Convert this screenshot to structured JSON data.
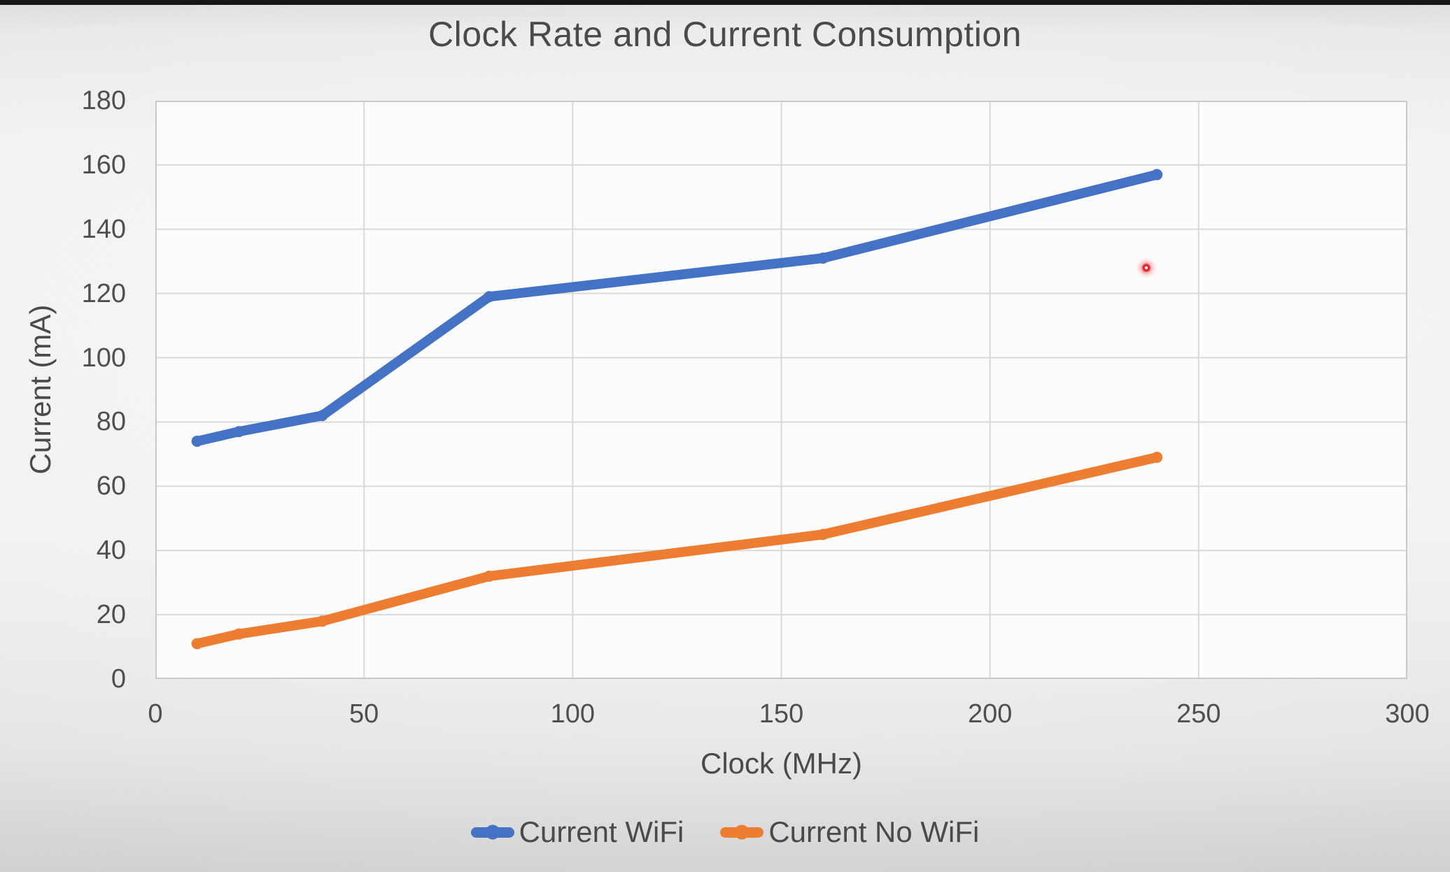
{
  "page": {
    "top_bar_color": "#161616",
    "text_color": "#4a4a4a",
    "tick_text_color": "#4f4f4f"
  },
  "chart_data": {
    "type": "line",
    "title": "Clock Rate and Current Consumption",
    "xlabel": "Clock (MHz)",
    "ylabel": "Current (mA)",
    "x": [
      10,
      20,
      40,
      80,
      160,
      240
    ],
    "series": [
      {
        "name": "Current WiFi",
        "color": "#4472C4",
        "values": [
          74,
          77,
          82,
          119,
          131,
          157
        ]
      },
      {
        "name": "Current No WiFi",
        "color": "#ED7D31",
        "values": [
          11,
          14,
          18,
          32,
          45,
          69
        ]
      }
    ],
    "xlim": [
      0,
      300
    ],
    "ylim": [
      0,
      180
    ],
    "x_ticks": [
      0,
      50,
      100,
      150,
      200,
      250,
      300
    ],
    "y_ticks": [
      0,
      20,
      40,
      60,
      80,
      100,
      120,
      140,
      160,
      180
    ],
    "grid": true,
    "gridline_color": "#d9d9d9",
    "plot_border_color": "#c9c9c9",
    "plot_background": "#fcfcfc",
    "legend_position": "bottom",
    "legend": [
      "Current WiFi",
      "Current No WiFi"
    ]
  },
  "pointer": {
    "x_mhz": 237.5,
    "y_ma": 128,
    "color": "#e0282d"
  }
}
